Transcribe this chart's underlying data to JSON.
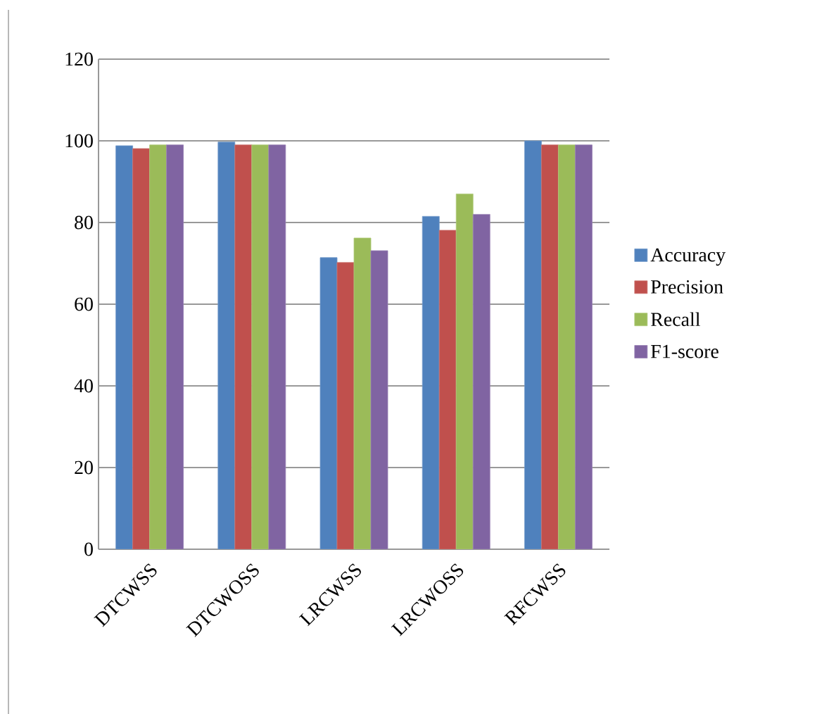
{
  "chart_data": {
    "type": "bar",
    "categories": [
      "DTCWSS",
      "DTCWOSS",
      "LRCWSS",
      "LRCWOSS",
      "RFCWSS"
    ],
    "series": [
      {
        "name": "Accuracy",
        "color": "#4f81bd",
        "values": [
          98.8,
          99.7,
          71.4,
          81.5,
          100
        ]
      },
      {
        "name": "Precision",
        "color": "#c0504d",
        "values": [
          98.1,
          99,
          70.2,
          78.1,
          99
        ]
      },
      {
        "name": "Recall",
        "color": "#9bbb59",
        "values": [
          99,
          99,
          76.2,
          87,
          99
        ]
      },
      {
        "name": "F1-score",
        "color": "#8064a2",
        "values": [
          99,
          99,
          73.1,
          82,
          99
        ]
      }
    ],
    "ylim": [
      0,
      120
    ],
    "yticks": [
      0,
      20,
      40,
      60,
      80,
      100,
      120
    ],
    "grid": "y",
    "legend": "right"
  }
}
